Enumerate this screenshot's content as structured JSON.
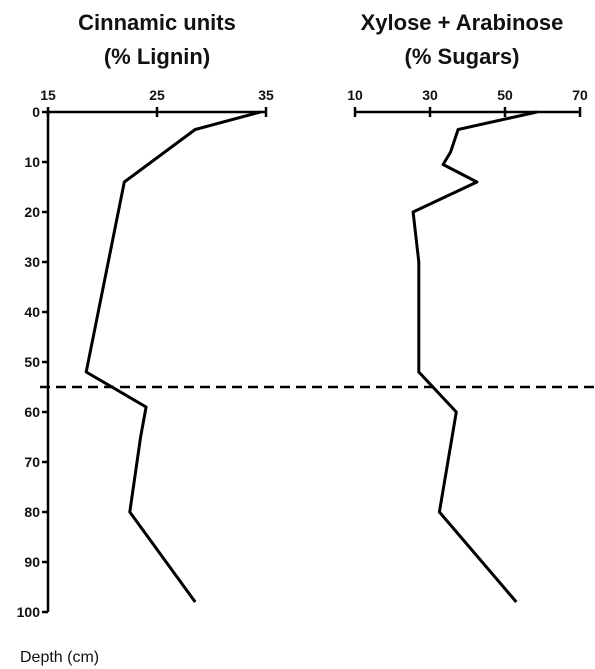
{
  "chart_data": [
    {
      "type": "line",
      "title": "Cinnamic units\n(% Lignin)",
      "ylabel": "Depth (cm)",
      "xlim": [
        15,
        35
      ],
      "ylim": [
        0,
        100
      ],
      "x_ticks": [
        "15",
        "25",
        "35"
      ],
      "y_ticks": [
        "0",
        "10",
        "20",
        "30",
        "40",
        "50",
        "60",
        "70",
        "80",
        "90",
        "100"
      ],
      "series": [
        {
          "x": [
            34.5,
            28.5,
            22.0,
            18.5,
            24.0,
            23.5,
            22.5,
            28.5
          ],
          "y": [
            0,
            3.5,
            14,
            52,
            59,
            65,
            80,
            98
          ]
        }
      ]
    },
    {
      "type": "line",
      "title": "Xylose + Arabinose\n(% Sugars)",
      "xlim": [
        10,
        70
      ],
      "ylim": [
        0,
        100
      ],
      "x_ticks": [
        "10",
        "30",
        "50",
        "70"
      ],
      "series": [
        {
          "x": [
            58.5,
            37.5,
            35.5,
            33.5,
            42.5,
            25.5,
            27.0,
            27.0,
            37.0,
            32.5,
            53.0
          ],
          "y": [
            0,
            3.5,
            8,
            10.5,
            14,
            20,
            30,
            52,
            60,
            80,
            98
          ]
        }
      ]
    }
  ],
  "reference_line": {
    "y": 55,
    "style": "dashed"
  },
  "colors": {
    "line": "#000000",
    "background": "#ffffff"
  }
}
